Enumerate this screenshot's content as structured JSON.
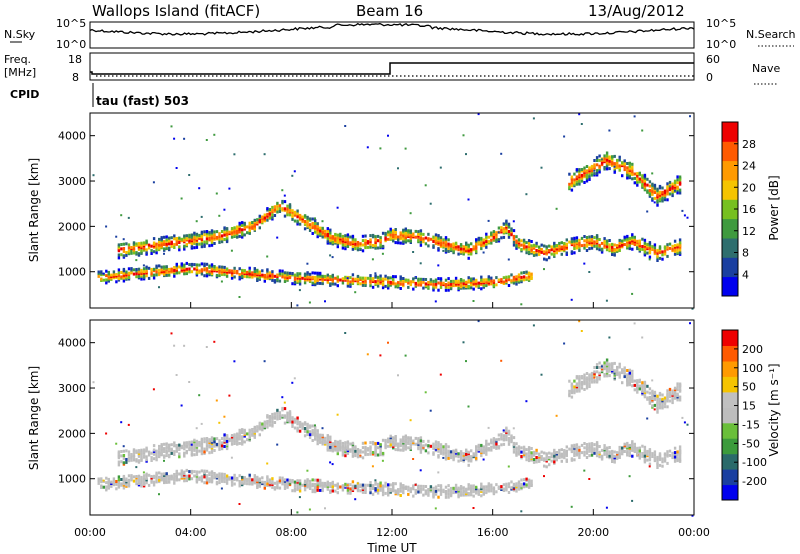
{
  "header": {
    "station": "Wallops Island (fitACF)",
    "beam": "Beam 16",
    "date": "13/Aug/2012"
  },
  "strip": {
    "nsky_label": "N.Sky",
    "nsky_ticks": [
      "10^5",
      "10^0"
    ],
    "nsearch_label": "N.Search",
    "nsearch_ticks": [
      "10^5",
      "10^0"
    ],
    "freq_label_1": "Freq.",
    "freq_label_2": "[MHz]",
    "freq_ticks": [
      "18",
      "8"
    ],
    "nave_label": "Nave",
    "nave_ticks": [
      "60",
      "0"
    ],
    "cpid_label": "CPID",
    "cpid_value": "tau (fast) 503"
  },
  "colors": {
    "power_scale": [
      "#0000ee",
      "#1a3fa0",
      "#2e6e6e",
      "#3f9a3f",
      "#77c021",
      "#f5c400",
      "#ff9a00",
      "#ff5a00",
      "#ee0000"
    ],
    "velocity_scale": [
      "#ee0000",
      "#ff5a00",
      "#ff9a00",
      "#f5c400",
      "#c0c0c0",
      "#bdbdbd",
      "#6abf3a",
      "#3c9b3c",
      "#2a6a6a",
      "#1a3fa0",
      "#0000ee"
    ]
  },
  "chart_data": [
    {
      "type": "heatmap",
      "name": "Power",
      "xlabel": "",
      "ylabel": "Slant Range [km]",
      "y_ticks": [
        1000,
        2000,
        3000,
        4000
      ],
      "ylim": [
        200,
        4500
      ],
      "x_range_hours": [
        0,
        24
      ],
      "colorbar": {
        "label": "Power [dB]",
        "ticks": [
          4,
          8,
          12,
          16,
          20,
          24,
          28
        ],
        "range": [
          0,
          32
        ]
      },
      "echo_bands": [
        {
          "name": "main trace",
          "points": [
            [
              1.0,
              1500
            ],
            [
              3.0,
              1650
            ],
            [
              5.0,
              1800
            ],
            [
              6.5,
              2050
            ],
            [
              7.5,
              2500
            ],
            [
              8.5,
              2150
            ],
            [
              9.5,
              1800
            ],
            [
              10.5,
              1650
            ],
            [
              11.5,
              1700
            ],
            [
              12.0,
              1850
            ],
            [
              13.0,
              1800
            ],
            [
              14.0,
              1650
            ],
            [
              15.0,
              1500
            ],
            [
              16.0,
              1800
            ],
            [
              16.5,
              2000
            ],
            [
              17.0,
              1650
            ],
            [
              18.0,
              1450
            ],
            [
              19.0,
              1600
            ],
            [
              20.0,
              1700
            ],
            [
              20.7,
              1550
            ],
            [
              21.5,
              1700
            ],
            [
              22.5,
              1450
            ],
            [
              23.5,
              1600
            ]
          ]
        },
        {
          "name": "lower trace",
          "points": [
            [
              0.3,
              900
            ],
            [
              2.0,
              1000
            ],
            [
              4.0,
              1100
            ],
            [
              6.0,
              1000
            ],
            [
              8.0,
              900
            ],
            [
              10.0,
              850
            ],
            [
              12.0,
              800
            ],
            [
              14.0,
              750
            ],
            [
              16.0,
              800
            ],
            [
              17.5,
              950
            ]
          ]
        },
        {
          "name": "upper trace",
          "points": [
            [
              19.0,
              3000
            ],
            [
              20.5,
              3500
            ],
            [
              21.5,
              3250
            ],
            [
              22.5,
              2700
            ],
            [
              23.5,
              3000
            ]
          ]
        }
      ]
    },
    {
      "type": "heatmap",
      "name": "Velocity",
      "xlabel": "Time UT",
      "ylabel": "Slant Range [km]",
      "y_ticks": [
        1000,
        2000,
        3000,
        4000
      ],
      "ylim": [
        200,
        4500
      ],
      "x_range_hours": [
        0,
        24
      ],
      "x_tick_labels": [
        "00:00",
        "04:00",
        "08:00",
        "12:00",
        "16:00",
        "20:00",
        "00:00"
      ],
      "colorbar": {
        "label": "Velocity [m s⁻¹]",
        "ticks": [
          200,
          100,
          50,
          15,
          -15,
          -50,
          -100,
          -200
        ],
        "range": [
          -250,
          250
        ]
      }
    }
  ]
}
